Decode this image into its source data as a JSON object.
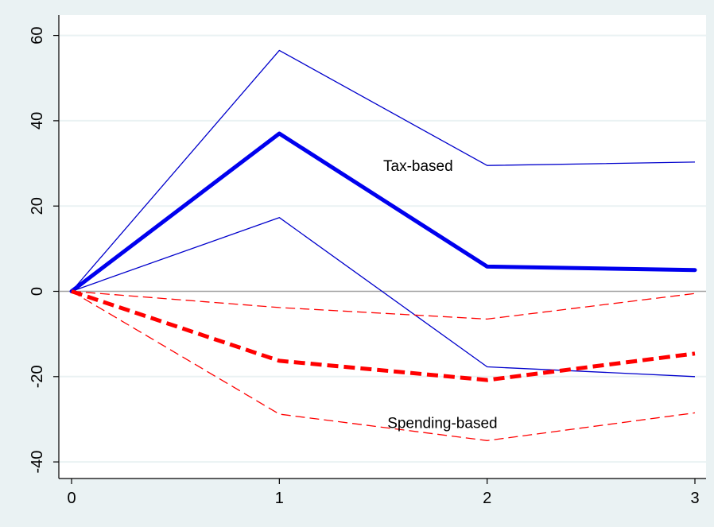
{
  "chart_data": {
    "type": "line",
    "title": "",
    "xlabel": "",
    "ylabel": "",
    "x": [
      0,
      1,
      2,
      3
    ],
    "xticks": [
      "0",
      "1",
      "2",
      "3"
    ],
    "yticks": [
      "-40",
      "-20",
      "0",
      "20",
      "40",
      "60"
    ],
    "ytick_values": [
      -40,
      -20,
      0,
      20,
      40,
      60
    ],
    "xlim": [
      0,
      3
    ],
    "ylim": [
      -40,
      60
    ],
    "grid": true,
    "legend": "none",
    "series": [
      {
        "group": "Tax-based",
        "role": "upper",
        "values": [
          0,
          56.5,
          29.5,
          30.3
        ],
        "color": "#0000cc",
        "style": "solid",
        "weight": "thin"
      },
      {
        "group": "Tax-based",
        "role": "point",
        "values": [
          0,
          37,
          5.8,
          5
        ],
        "color": "#0000ee",
        "style": "solid",
        "weight": "thick"
      },
      {
        "group": "Tax-based",
        "role": "lower",
        "values": [
          0,
          17.3,
          -17.7,
          -20
        ],
        "color": "#0000cc",
        "style": "solid",
        "weight": "thin"
      },
      {
        "group": "Spending-based",
        "role": "upper",
        "values": [
          0,
          -3.8,
          -6.5,
          -0.5
        ],
        "color": "#ff0000",
        "style": "dashed",
        "weight": "thin"
      },
      {
        "group": "Spending-based",
        "role": "point",
        "values": [
          0,
          -16.3,
          -20.8,
          -14.6
        ],
        "color": "#ff0000",
        "style": "dashed",
        "weight": "thick"
      },
      {
        "group": "Spending-based",
        "role": "lower",
        "values": [
          0,
          -28.8,
          -35,
          -28.5
        ],
        "color": "#ff0000",
        "style": "dashed",
        "weight": "thin"
      }
    ],
    "annotations": [
      {
        "text": "Tax-based",
        "x": 1.5,
        "y": 29.5
      },
      {
        "text": "Spending-based",
        "x": 1.52,
        "y": -30.8
      }
    ],
    "colors": {
      "background": "#eaf2f3",
      "plot_background": "#ffffff",
      "grid": "#eaf2f3",
      "zero_line": "#a0a0a0",
      "axis": "#000000"
    }
  }
}
